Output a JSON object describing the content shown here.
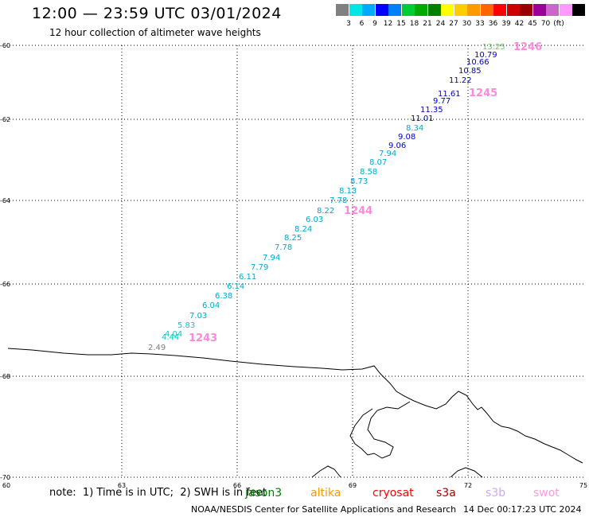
{
  "header": {
    "title": "12:00 — 23:59 UTC 03/01/2024",
    "subtitle": "12 hour collection of altimeter wave heights"
  },
  "scale": {
    "colors": [
      "#808080",
      "#00e5e5",
      "#00aaff",
      "#0000ff",
      "#0080ff",
      "#00cc33",
      "#00aa00",
      "#008000",
      "#ffff00",
      "#ffcc00",
      "#ff9900",
      "#ff6600",
      "#ff0000",
      "#cc0000",
      "#990000",
      "#990099",
      "#cc66cc",
      "#ff99ff",
      "#000000"
    ],
    "labels": [
      "3",
      "6",
      "9",
      "12",
      "15",
      "18",
      "21",
      "24",
      "27",
      "30",
      "33",
      "36",
      "39",
      "42",
      "45",
      "70",
      "(ft)"
    ]
  },
  "axes": {
    "x_ticks": [
      "60",
      "63",
      "66",
      "69",
      "72",
      "75"
    ],
    "y_ticks": [
      "-60",
      "-62",
      "-64",
      "-66",
      "-68",
      "-70"
    ]
  },
  "passes": [
    {
      "id": "1243",
      "color": "#ff88dd"
    },
    {
      "id": "1244",
      "color": "#ff88dd"
    },
    {
      "id": "1245",
      "color": "#ff88dd"
    },
    {
      "id": "1246",
      "color": "#ff88dd"
    }
  ],
  "observations": [
    {
      "value": "2.49",
      "color": "#808080"
    },
    {
      "value": "4.44",
      "color": "#00cccc"
    },
    {
      "value": "4.04",
      "color": "#00cccc"
    },
    {
      "value": "5.83",
      "color": "#00cccc"
    },
    {
      "value": "7.03",
      "color": "#00aacc"
    },
    {
      "value": "6.04",
      "color": "#00aacc"
    },
    {
      "value": "6.38",
      "color": "#00aacc"
    },
    {
      "value": "6.14",
      "color": "#00aacc"
    },
    {
      "value": "6.11",
      "color": "#00aacc"
    },
    {
      "value": "7.79",
      "color": "#00aacc"
    },
    {
      "value": "7.94",
      "color": "#00aacc"
    },
    {
      "value": "7.78",
      "color": "#00aacc"
    },
    {
      "value": "8.25",
      "color": "#00aacc"
    },
    {
      "value": "8.24",
      "color": "#00aacc"
    },
    {
      "value": "6.03",
      "color": "#00aacc"
    },
    {
      "value": "8.22",
      "color": "#00aacc"
    },
    {
      "value": "7.78",
      "color": "#00aacc"
    },
    {
      "value": "8.13",
      "color": "#00aacc"
    },
    {
      "value": "8.73",
      "color": "#00aacc"
    },
    {
      "value": "8.58",
      "color": "#00aacc"
    },
    {
      "value": "8.07",
      "color": "#00aacc"
    },
    {
      "value": "7.94",
      "color": "#00aacc"
    },
    {
      "value": "9.06",
      "color": "#0000cc"
    },
    {
      "value": "9.08",
      "color": "#0000cc"
    },
    {
      "value": "8.34",
      "color": "#00aacc"
    },
    {
      "value": "11.01",
      "color": "#0000cc"
    },
    {
      "value": "11.35",
      "color": "#0000cc"
    },
    {
      "value": "9.77",
      "color": "#0000cc"
    },
    {
      "value": "11.61",
      "color": "#0000cc"
    },
    {
      "value": "11.22",
      "color": "#0000cc"
    },
    {
      "value": "10.85",
      "color": "#0000cc"
    },
    {
      "value": "10.66",
      "color": "#0000cc"
    },
    {
      "value": "10.79",
      "color": "#0000cc"
    },
    {
      "value": "13.25",
      "color": "#44dd44"
    }
  ],
  "footer": {
    "note": "note:  1) Time is in UTC;  2) SWH is in feet",
    "satellites": [
      {
        "name": "jason3",
        "color": "#008000"
      },
      {
        "name": "altika",
        "color": "#ff9900"
      },
      {
        "name": "cryosat",
        "color": "#ff0000"
      },
      {
        "name": "s3a",
        "color": "#aa0000"
      },
      {
        "name": "s3b",
        "color": "#ccaaee"
      },
      {
        "name": "swot",
        "color": "#ff99dd"
      }
    ],
    "credit": "NOAA/NESDIS Center for Satellite Applications and Research",
    "timestamp": "14 Dec 00:17:23 UTC 2024"
  }
}
